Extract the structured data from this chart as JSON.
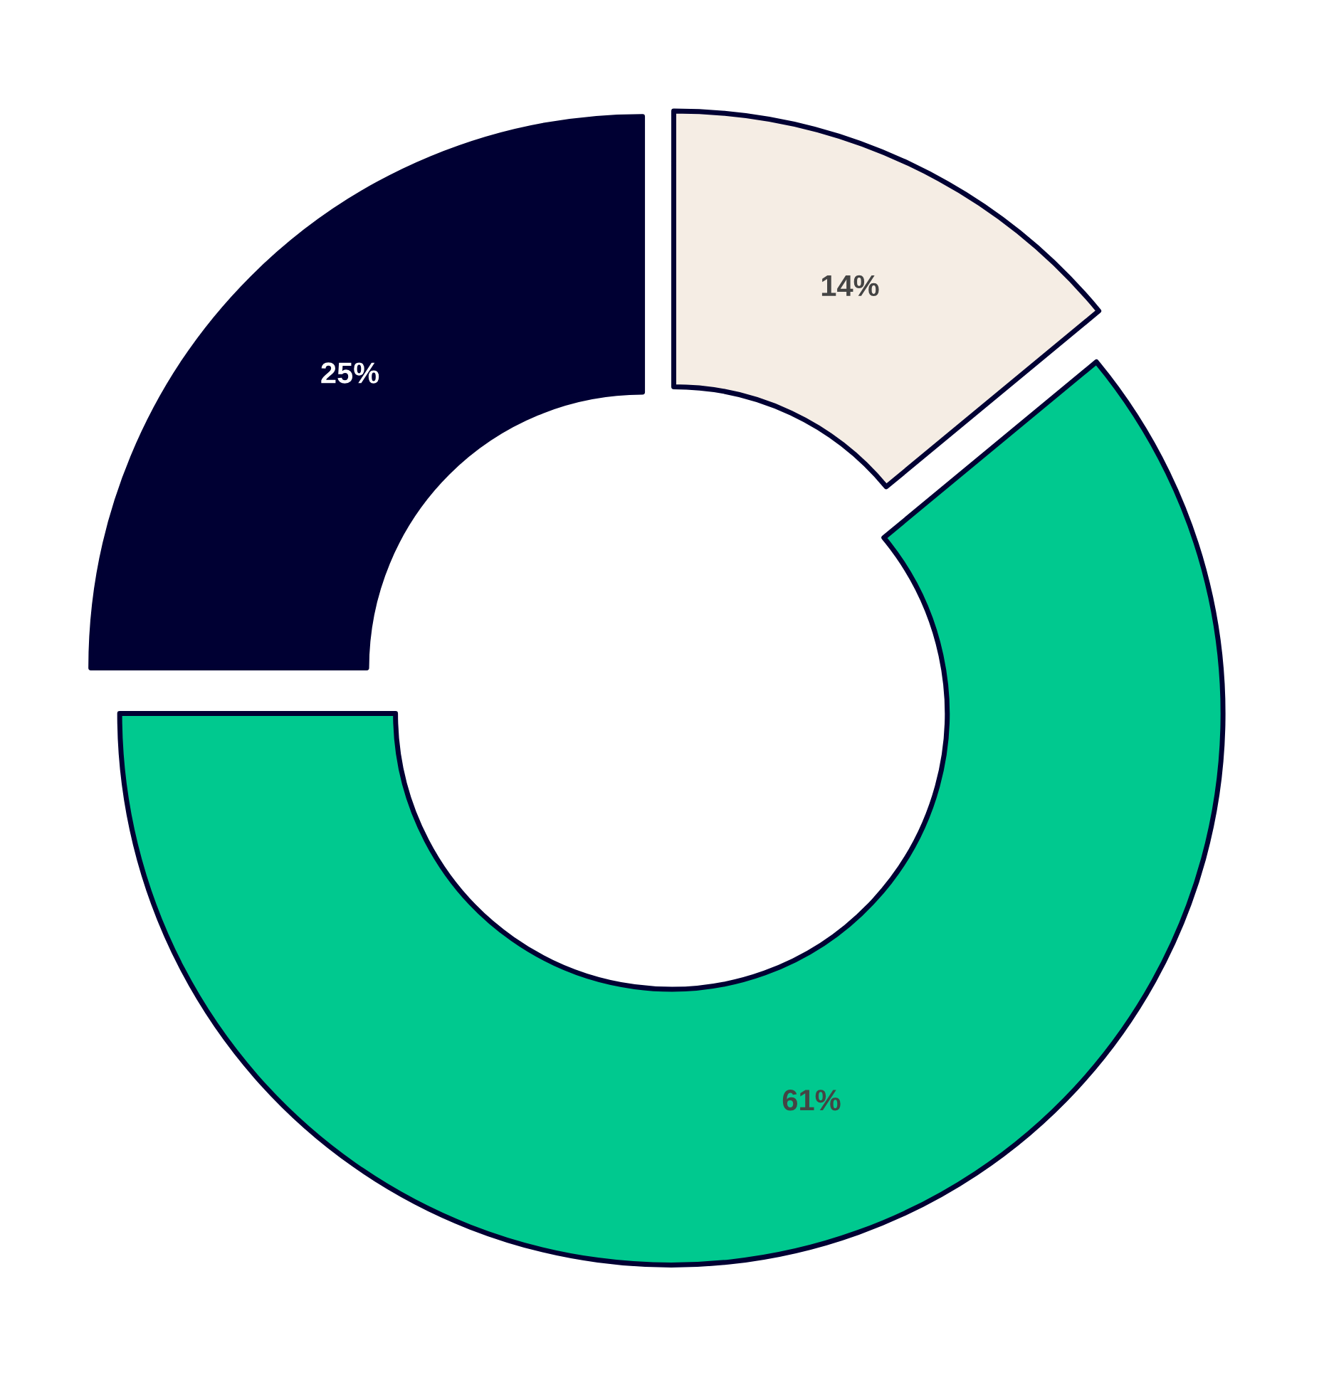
{
  "chart_data": {
    "type": "donut",
    "categories": [
      null,
      null,
      null
    ],
    "values": [
      14,
      61,
      25
    ],
    "colors": [
      "#f5ede4",
      "#00c98f",
      "#000033"
    ],
    "value_labels": [
      "14%",
      "61%",
      "25%"
    ]
  }
}
